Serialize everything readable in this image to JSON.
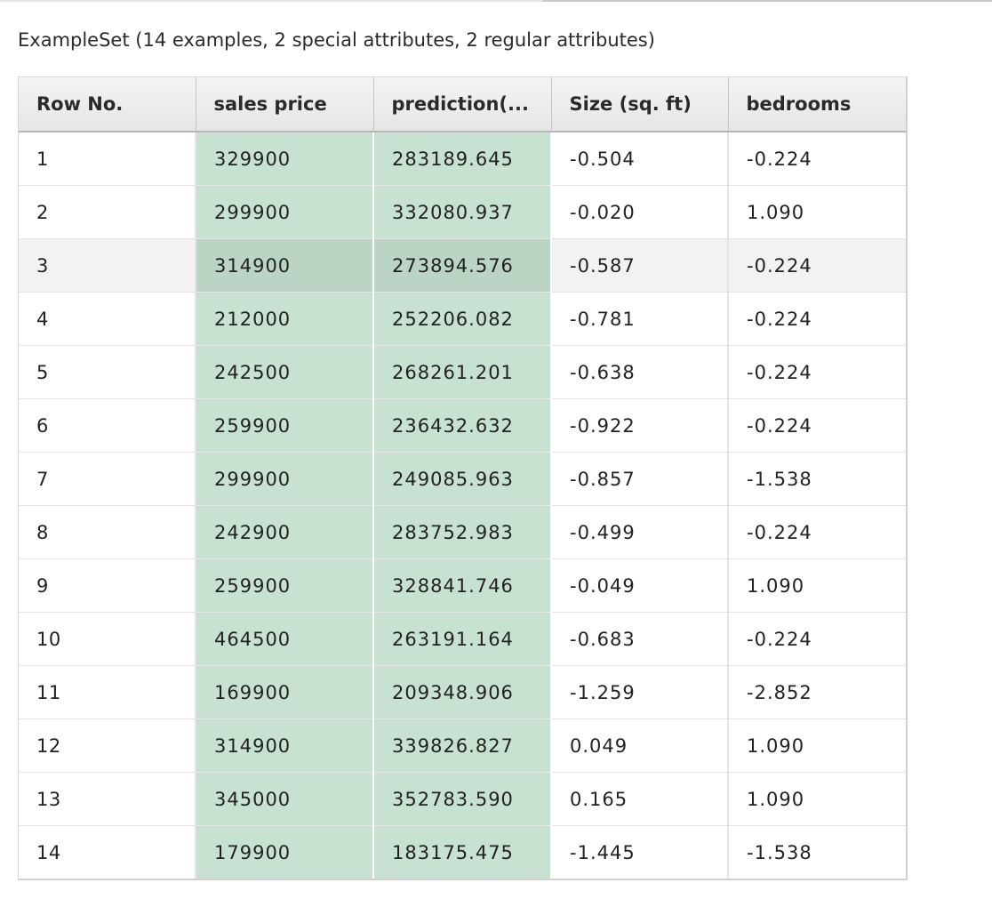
{
  "caption": "ExampleSet (14 examples, 2 special attributes, 2 regular attributes)",
  "columns": [
    "Row No.",
    "sales price",
    "prediction(...",
    "Size (sq. ft)",
    "bedrooms"
  ],
  "special_columns": [
    "sales price",
    "prediction(..."
  ],
  "special_color": "#c8e2d2",
  "highlighted_row": 3,
  "rows": [
    [
      "1",
      "329900",
      "283189.645",
      "-0.504",
      "-0.224"
    ],
    [
      "2",
      "299900",
      "332080.937",
      "-0.020",
      "1.090"
    ],
    [
      "3",
      "314900",
      "273894.576",
      "-0.587",
      "-0.224"
    ],
    [
      "4",
      "212000",
      "252206.082",
      "-0.781",
      "-0.224"
    ],
    [
      "5",
      "242500",
      "268261.201",
      "-0.638",
      "-0.224"
    ],
    [
      "6",
      "259900",
      "236432.632",
      "-0.922",
      "-0.224"
    ],
    [
      "7",
      "299900",
      "249085.963",
      "-0.857",
      "-1.538"
    ],
    [
      "8",
      "242900",
      "283752.983",
      "-0.499",
      "-0.224"
    ],
    [
      "9",
      "259900",
      "328841.746",
      "-0.049",
      "1.090"
    ],
    [
      "10",
      "464500",
      "263191.164",
      "-0.683",
      "-0.224"
    ],
    [
      "11",
      "169900",
      "209348.906",
      "-1.259",
      "-2.852"
    ],
    [
      "12",
      "314900",
      "339826.827",
      "0.049",
      "1.090"
    ],
    [
      "13",
      "345000",
      "352783.590",
      "0.165",
      "1.090"
    ],
    [
      "14",
      "179900",
      "183175.475",
      "-1.445",
      "-1.538"
    ]
  ]
}
